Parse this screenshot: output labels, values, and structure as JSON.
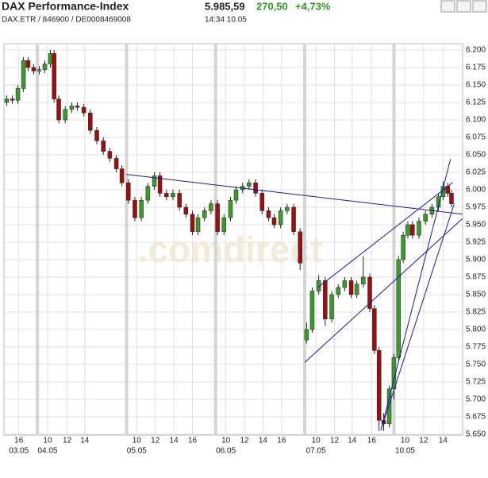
{
  "header": {
    "title": "DAX Performance-Index",
    "price": "5.985,59",
    "change": "270,50",
    "change_pct": "+4,73%",
    "symbol": "DAX.ETR  /  846900  /  DE0008469008",
    "time": "14:34  10.05"
  },
  "chart_data": {
    "type": "candlestick",
    "watermark": ".comdirect",
    "x": [
      0.3,
      0.9,
      1.5,
      2.1,
      2.6,
      3.2,
      3.8,
      4.4,
      5.0,
      5.4,
      5.9,
      6.6,
      7.3,
      7.9,
      8.6,
      9.3,
      10.0,
      10.7,
      11.4,
      12.1,
      12.7,
      13.4,
      14.1,
      14.8,
      15.5,
      16.2,
      16.8,
      17.5,
      18.2,
      18.9,
      19.6,
      20.3,
      20.9,
      21.6,
      22.3,
      23.0,
      23.7,
      24.4,
      25.0,
      25.7,
      26.4,
      27.1,
      27.8,
      28.5,
      29.1,
      29.8,
      30.5,
      31.2,
      31.9,
      32.6,
      33.2,
      33.9,
      34.6,
      35.3,
      36.0,
      36.7,
      37.4,
      38.0,
      38.7,
      39.4,
      39.9,
      40.4,
      40.9,
      41.5,
      42.0,
      42.5,
      43.0,
      43.5,
      44.0,
      44.7,
      45.4,
      46.1,
      46.8,
      47.3,
      47.8,
      48.2
    ],
    "open": [
      6.125,
      6.13,
      6.128,
      6.145,
      6.185,
      6.175,
      6.17,
      6.172,
      6.18,
      6.195,
      6.13,
      6.1,
      6.115,
      6.12,
      6.118,
      6.11,
      6.085,
      6.07,
      6.055,
      6.045,
      6.03,
      6.01,
      5.985,
      5.96,
      5.985,
      6.005,
      6.02,
      5.995,
      5.99,
      5.995,
      5.975,
      5.965,
      5.94,
      5.96,
      5.97,
      5.98,
      5.94,
      5.96,
      5.985,
      6.0,
      6.005,
      6.01,
      5.995,
      5.97,
      5.96,
      5.95,
      5.97,
      5.975,
      5.94,
      5.785,
      5.8,
      5.855,
      5.87,
      5.815,
      5.85,
      5.86,
      5.87,
      5.85,
      5.865,
      5.875,
      5.83,
      5.77,
      5.67,
      5.665,
      5.715,
      5.76,
      5.9,
      5.935,
      5.95,
      5.935,
      5.955,
      5.965,
      5.975,
      5.99,
      6.005,
      5.995
    ],
    "high": [
      6.135,
      6.135,
      6.15,
      6.19,
      6.19,
      6.18,
      6.177,
      6.185,
      6.2,
      6.2,
      6.135,
      6.12,
      6.125,
      6.125,
      6.123,
      6.115,
      6.09,
      6.075,
      6.06,
      6.05,
      6.035,
      6.015,
      5.99,
      5.99,
      6.01,
      6.025,
      6.025,
      6.0,
      6.0,
      6.0,
      5.98,
      5.97,
      5.965,
      5.975,
      5.985,
      5.985,
      5.965,
      5.99,
      6.005,
      6.01,
      6.015,
      6.015,
      6.0,
      5.975,
      5.965,
      5.975,
      5.98,
      5.98,
      5.945,
      5.81,
      5.86,
      5.878,
      5.875,
      5.855,
      5.865,
      5.875,
      5.875,
      5.87,
      5.905,
      5.88,
      5.835,
      5.775,
      5.68,
      5.72,
      5.765,
      5.905,
      5.94,
      5.955,
      5.955,
      5.96,
      5.97,
      5.98,
      5.995,
      6.012,
      6.01,
      6.0
    ],
    "low": [
      6.12,
      6.123,
      6.123,
      6.14,
      6.17,
      6.165,
      6.165,
      6.167,
      6.175,
      6.125,
      6.095,
      6.095,
      6.11,
      6.113,
      6.105,
      6.08,
      6.065,
      6.05,
      6.04,
      6.025,
      6.005,
      5.98,
      5.955,
      5.955,
      5.98,
      6.0,
      5.99,
      5.985,
      5.985,
      5.97,
      5.96,
      5.935,
      5.935,
      5.955,
      5.965,
      5.935,
      5.935,
      5.955,
      5.98,
      5.995,
      6.0,
      5.99,
      5.965,
      5.955,
      5.945,
      5.945,
      5.965,
      5.935,
      5.885,
      5.78,
      5.795,
      5.85,
      5.805,
      5.81,
      5.845,
      5.855,
      5.845,
      5.845,
      5.86,
      5.825,
      5.765,
      5.655,
      5.655,
      5.66,
      5.7,
      5.755,
      5.895,
      5.93,
      5.93,
      5.93,
      5.95,
      5.96,
      5.97,
      5.985,
      5.99,
      5.975
    ],
    "close": [
      6.13,
      6.128,
      6.145,
      6.185,
      6.175,
      6.17,
      6.172,
      6.18,
      6.195,
      6.13,
      6.1,
      6.115,
      6.12,
      6.118,
      6.11,
      6.085,
      6.07,
      6.055,
      6.045,
      6.03,
      6.01,
      5.985,
      5.96,
      5.985,
      6.005,
      6.02,
      5.995,
      5.99,
      5.995,
      5.975,
      5.965,
      5.94,
      5.96,
      5.97,
      5.98,
      5.94,
      5.96,
      5.985,
      6.0,
      6.005,
      6.01,
      5.995,
      5.97,
      5.96,
      5.95,
      5.97,
      5.975,
      5.94,
      5.895,
      5.8,
      5.855,
      5.87,
      5.815,
      5.85,
      5.86,
      5.87,
      5.85,
      5.865,
      5.875,
      5.83,
      5.77,
      5.67,
      5.665,
      5.715,
      5.76,
      5.9,
      5.935,
      5.95,
      5.935,
      5.955,
      5.965,
      5.975,
      5.99,
      6.005,
      5.995,
      5.98
    ],
    "up_color": "#3c9a2c",
    "down_color": "#9a1010",
    "trendline_color": "#1a1a9a",
    "trendlines": [
      {
        "x": [
          13.2,
          49.4
        ],
        "y": [
          6.022,
          5.965
        ]
      },
      {
        "x": [
          32.4,
          49.4
        ],
        "y": [
          5.753,
          5.959
        ]
      },
      {
        "x": [
          33.8,
          48.3
        ],
        "y": [
          5.86,
          6.01
        ]
      },
      {
        "x": [
          40.6,
          48.1
        ],
        "y": [
          5.656,
          6.044
        ]
      },
      {
        "x": [
          40.6,
          48.5
        ],
        "y": [
          5.656,
          5.98
        ]
      }
    ],
    "xlim": [
      0,
      49.4
    ],
    "ylim": [
      5.65,
      6.2
    ],
    "yticks": [
      {
        "value": 6.2,
        "label": "6.200"
      },
      {
        "value": 6.175,
        "label": "6.175"
      },
      {
        "value": 6.15,
        "label": "6.150"
      },
      {
        "value": 6.125,
        "label": "6.125"
      },
      {
        "value": 6.1,
        "label": "6.100"
      },
      {
        "value": 6.075,
        "label": "6.075"
      },
      {
        "value": 6.05,
        "label": "6.050"
      },
      {
        "value": 6.025,
        "label": "6.025"
      },
      {
        "value": 6.0,
        "label": "6.000"
      },
      {
        "value": 5.975,
        "label": "5.975"
      },
      {
        "value": 5.95,
        "label": "5.950"
      },
      {
        "value": 5.925,
        "label": "5.925"
      },
      {
        "value": 5.9,
        "label": "5.900"
      },
      {
        "value": 5.875,
        "label": "5.875"
      },
      {
        "value": 5.85,
        "label": "5.850"
      },
      {
        "value": 5.825,
        "label": "5.825"
      },
      {
        "value": 5.8,
        "label": "5.800"
      },
      {
        "value": 5.775,
        "label": "5.775"
      },
      {
        "value": 5.75,
        "label": "5.750"
      },
      {
        "value": 5.725,
        "label": "5.725"
      },
      {
        "value": 5.7,
        "label": "5.700"
      },
      {
        "value": 5.675,
        "label": "5.675"
      },
      {
        "value": 5.65,
        "label": "5.650"
      }
    ],
    "xticks": [
      {
        "value": 1.6,
        "label": "16"
      },
      {
        "value": 4.7,
        "label": "10"
      },
      {
        "value": 6.8,
        "label": "12"
      },
      {
        "value": 8.7,
        "label": "14"
      },
      {
        "value": 14.3,
        "label": "10"
      },
      {
        "value": 16.3,
        "label": "12"
      },
      {
        "value": 18.3,
        "label": "14"
      },
      {
        "value": 20.3,
        "label": "16"
      },
      {
        "value": 23.9,
        "label": "10"
      },
      {
        "value": 25.9,
        "label": "12"
      },
      {
        "value": 27.9,
        "label": "14"
      },
      {
        "value": 29.9,
        "label": "16"
      },
      {
        "value": 33.6,
        "label": "10"
      },
      {
        "value": 35.6,
        "label": "12"
      },
      {
        "value": 37.5,
        "label": "14"
      },
      {
        "value": 39.6,
        "label": "16"
      },
      {
        "value": 43.2,
        "label": "10"
      },
      {
        "value": 45.2,
        "label": "12"
      },
      {
        "value": 47.3,
        "label": "14"
      }
    ],
    "date_labels": [
      {
        "value": 1.6,
        "label": "03.05"
      },
      {
        "value": 4.7,
        "label": "04.05"
      },
      {
        "value": 14.3,
        "label": "05.05"
      },
      {
        "value": 23.9,
        "label": "06.05"
      },
      {
        "value": 33.6,
        "label": "07.05"
      },
      {
        "value": 43.2,
        "label": "10.05"
      }
    ],
    "day_breaks": [
      3.6,
      13.2,
      22.8,
      32.4,
      42.0
    ],
    "grid": true
  }
}
